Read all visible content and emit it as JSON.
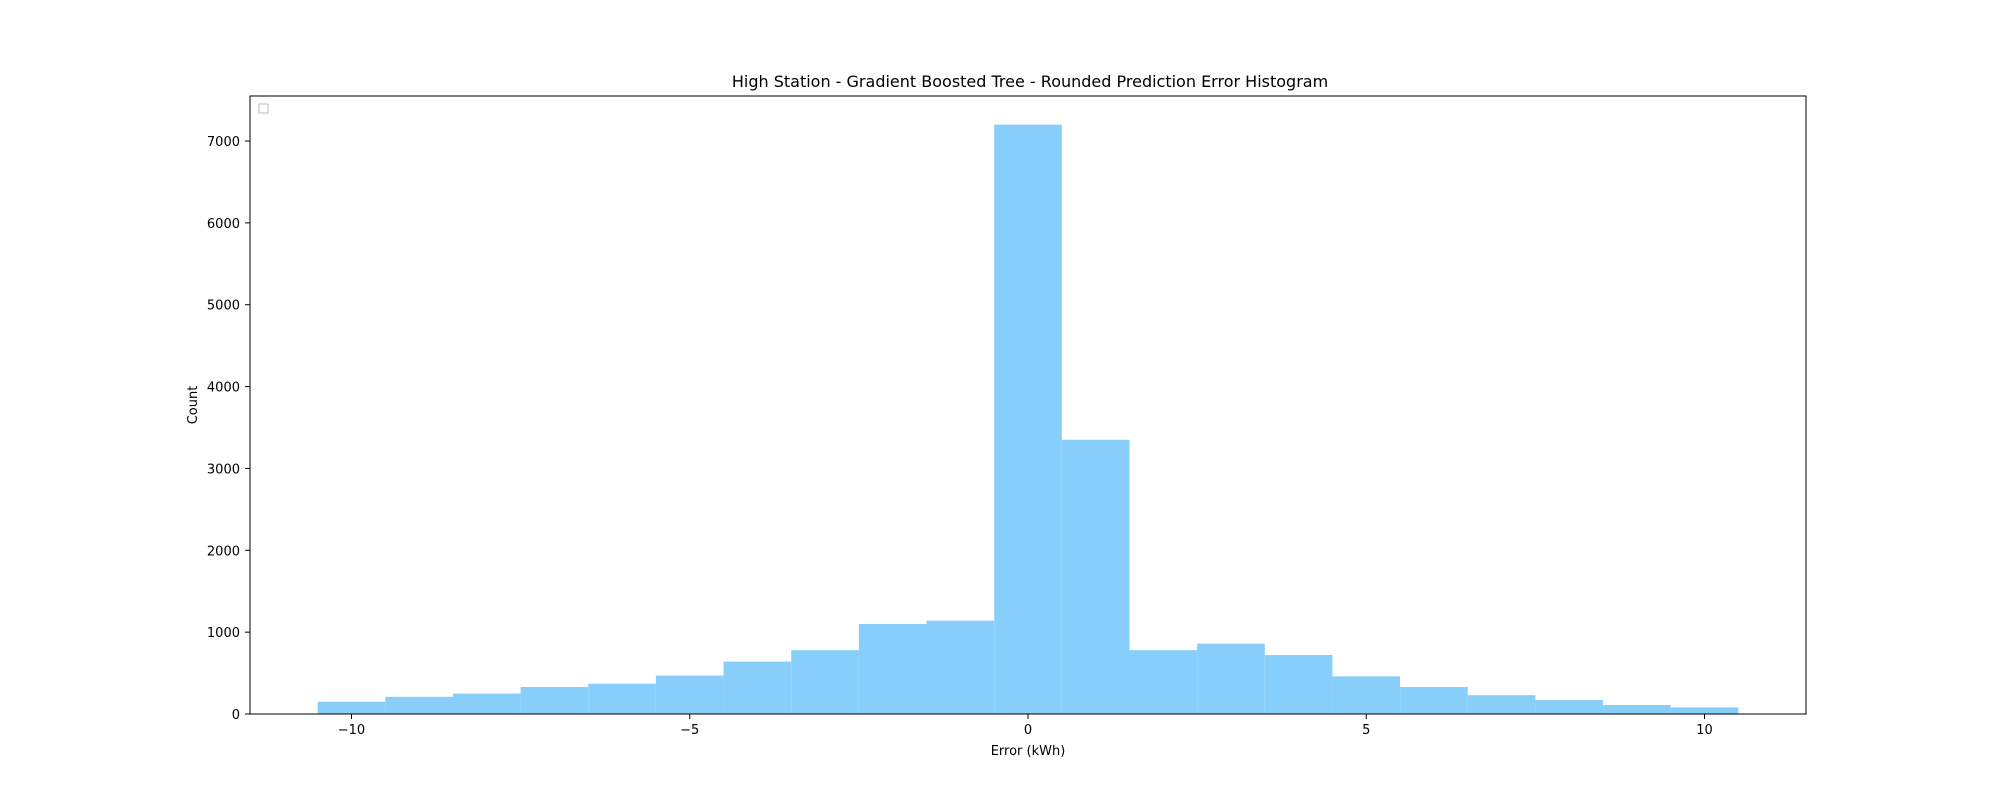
{
  "chart_data": {
    "type": "bar",
    "title": "High Station - Gradient Boosted Tree - Rounded Prediction Error Histogram",
    "xlabel": "Error (kWh)",
    "ylabel": "Count",
    "x": [
      -10,
      -9,
      -8,
      -7,
      -6,
      -5,
      -4,
      -3,
      -2,
      -1,
      0,
      1,
      2,
      3,
      4,
      5,
      6,
      7,
      8,
      9,
      10
    ],
    "values": [
      150,
      210,
      250,
      330,
      370,
      470,
      640,
      780,
      1100,
      1140,
      7200,
      3350,
      780,
      860,
      720,
      460,
      330,
      230,
      170,
      110,
      80
    ],
    "bin_width": 1,
    "xlim": [
      -11.5,
      11.5
    ],
    "ylim": [
      0,
      7550
    ],
    "xticks": [
      -10,
      -5,
      0,
      5,
      10
    ],
    "xtick_labels": [
      "−10",
      "−5",
      "0",
      "5",
      "10"
    ],
    "yticks": [
      0,
      1000,
      2000,
      3000,
      4000,
      5000,
      6000,
      7000
    ],
    "ytick_labels": [
      "0",
      "1000",
      "2000",
      "3000",
      "4000",
      "5000",
      "6000",
      "7000"
    ],
    "bar_color": "#87CEFA",
    "grid": false,
    "legend_placement": "upper left"
  }
}
